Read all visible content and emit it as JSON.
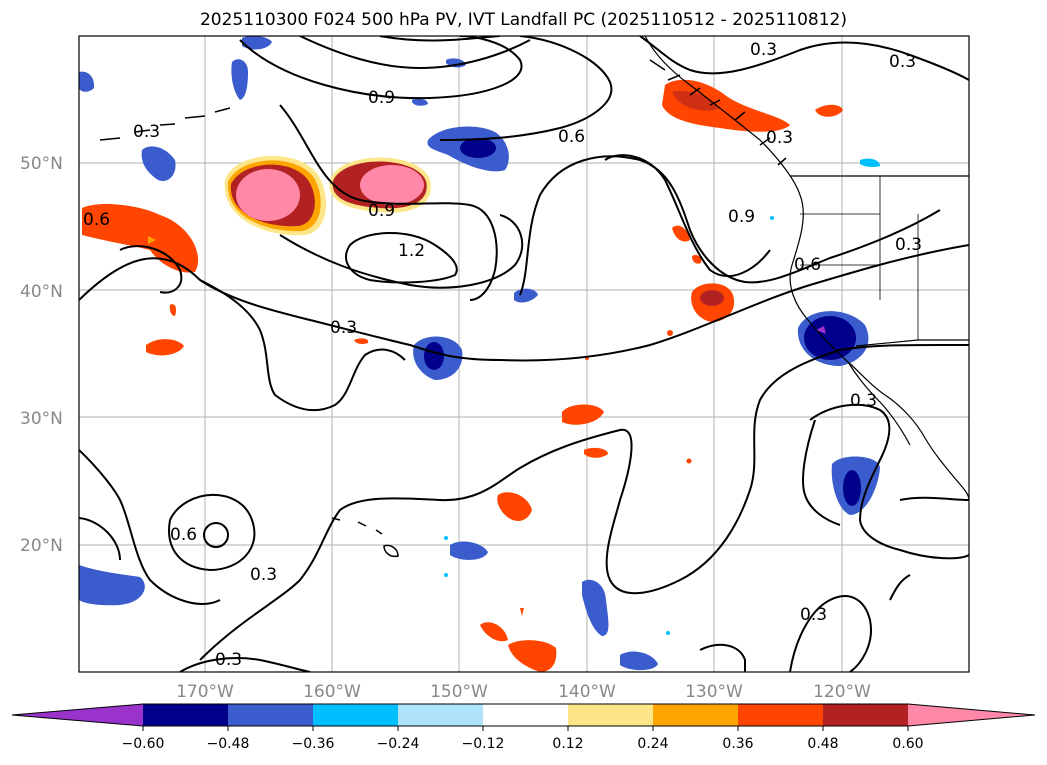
{
  "title": "2025110300 F024 500 hPa PV, IVT Landfall PC (2025110512 - 2025110812)",
  "lat_labels": [
    "50°N",
    "40°N",
    "30°N",
    "20°N"
  ],
  "lon_labels": [
    "170°W",
    "160°W",
    "150°W",
    "140°W",
    "130°W",
    "120°W"
  ],
  "contour_labels": [
    "0.3",
    "0.3",
    "0.3",
    "0.3",
    "0.3",
    "0.3",
    "0.3",
    "0.3",
    "0.3",
    "0.3",
    "0.6",
    "0.6",
    "0.6",
    "0.6",
    "0.9",
    "0.9",
    "0.9",
    "1.2"
  ],
  "colorbar": {
    "ticks": [
      "−0.60",
      "−0.48",
      "−0.36",
      "−0.24",
      "−0.12",
      "0.12",
      "0.24",
      "0.36",
      "0.48",
      "0.60"
    ],
    "colors": [
      "#9a33cc",
      "#00008b",
      "#3a5ccc",
      "#00bfff",
      "#aee3fb",
      "#ffffff",
      "#fde68a",
      "#ffa500",
      "#ff4500",
      "#b22222",
      "#ff88a8"
    ]
  }
}
